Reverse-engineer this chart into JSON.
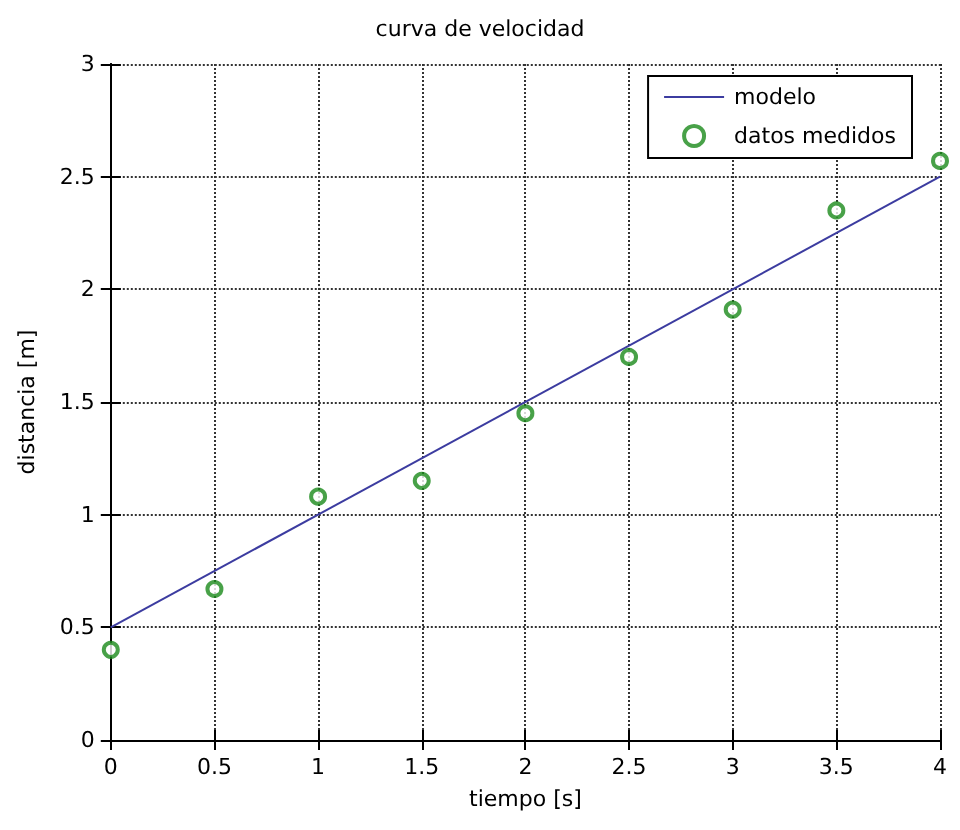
{
  "chart_data": {
    "type": "line",
    "title": "curva de velocidad",
    "xlabel": "tiempo [s]",
    "ylabel": "distancia [m]",
    "series": [
      {
        "name": "modelo",
        "color": "#3c3ca0",
        "x": [
          0,
          4
        ],
        "values": [
          0.5,
          2.5
        ],
        "marker": "none",
        "line_style": "solid"
      },
      {
        "name": "datos medidos",
        "type": "scatter",
        "color": "#1a8a1a",
        "x": [
          0,
          0.5,
          1,
          1.5,
          2,
          2.5,
          3,
          3.5,
          4
        ],
        "values": [
          0.4,
          0.67,
          1.08,
          1.15,
          1.45,
          1.7,
          1.91,
          2.35,
          2.57
        ],
        "marker": "circle"
      }
    ],
    "xlim": [
      0,
      4
    ],
    "xticks": [
      0,
      0.5,
      1,
      1.5,
      2,
      2.5,
      3,
      3.5,
      4
    ],
    "ylim": [
      0,
      3
    ],
    "yticks": [
      0,
      0.5,
      1,
      1.5,
      2,
      2.5,
      3
    ],
    "grid": true,
    "legend": "top right"
  }
}
